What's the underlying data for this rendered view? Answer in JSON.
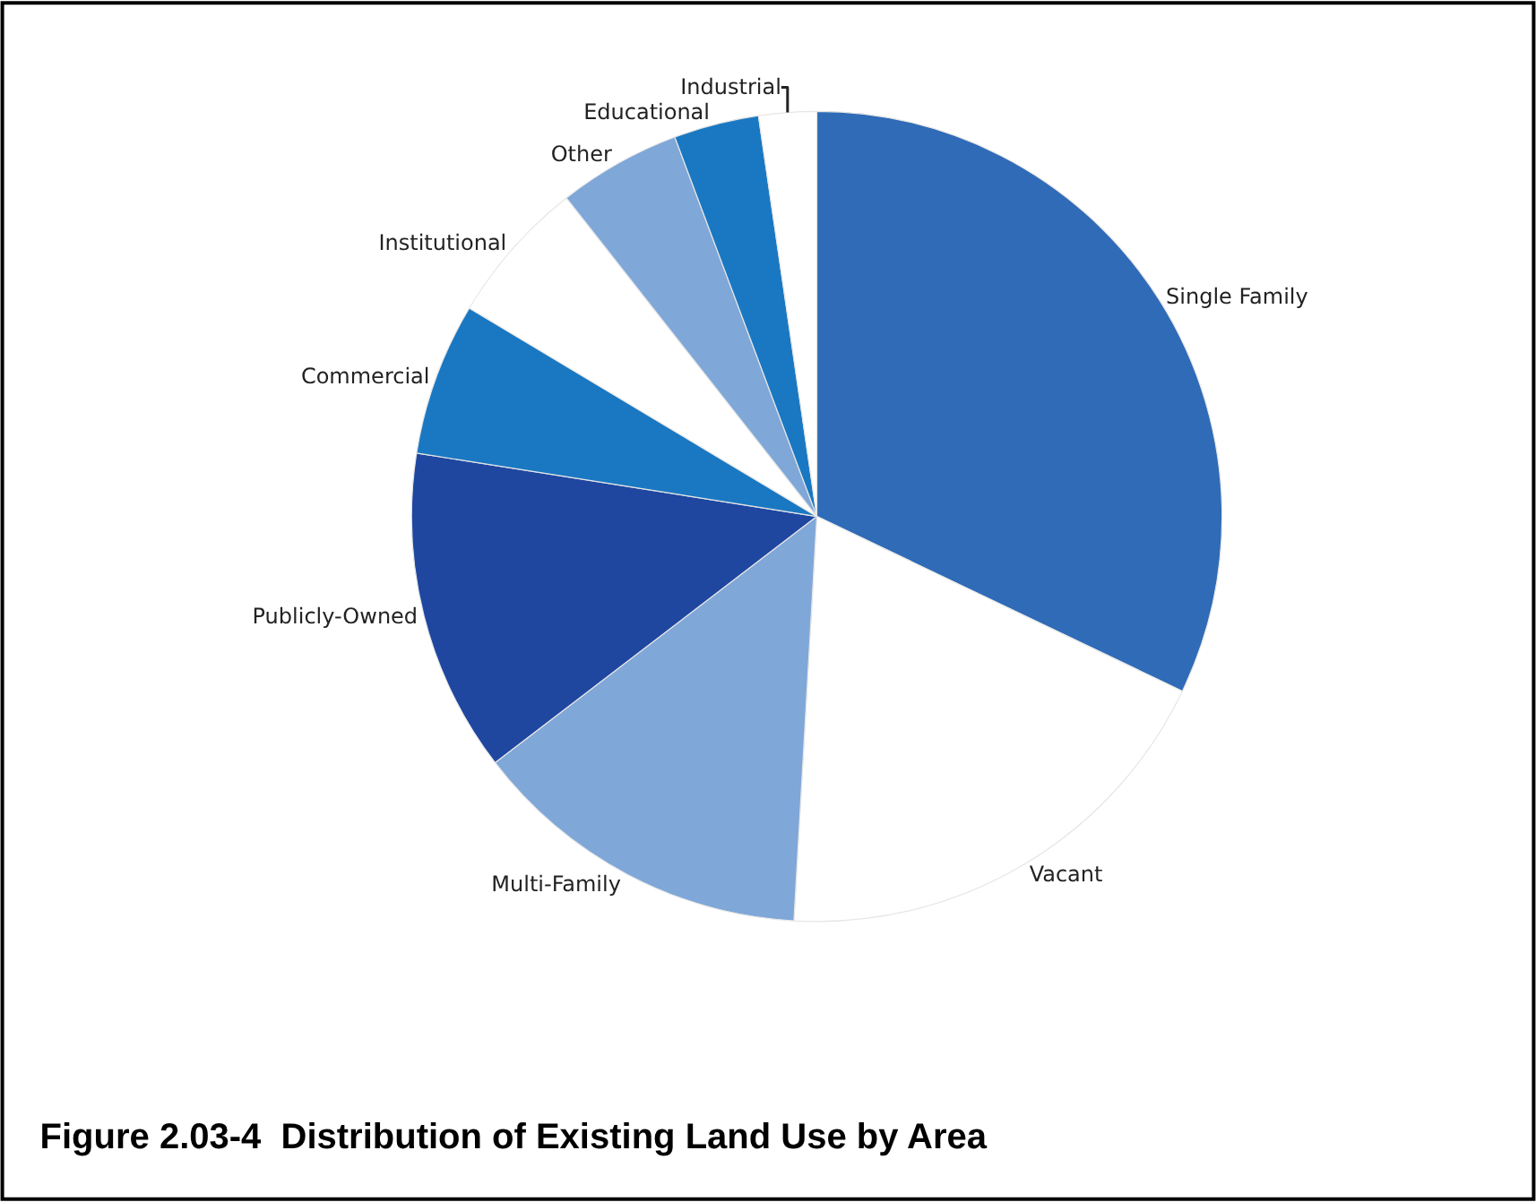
{
  "chart_data": {
    "type": "pie",
    "title": "Figure 2.03-4  Distribution of Existing Land Use by Area",
    "categories": [
      "Single Family",
      "Vacant",
      "Multi-Family",
      "Publicly-Owned",
      "Commercial",
      "Institutional",
      "Other",
      "Educational",
      "Industrial"
    ],
    "values": [
      32.1,
      18.8,
      13.7,
      12.9,
      6.1,
      5.8,
      4.9,
      3.4,
      2.3
    ],
    "colors": [
      "#2f6bb7",
      "#ffffff",
      "#7fa7d8",
      "#1f47a0",
      "#1a78c2",
      "#ffffff",
      "#7fa7d8",
      "#1a78c2",
      "#ffffff"
    ],
    "legend": false
  }
}
